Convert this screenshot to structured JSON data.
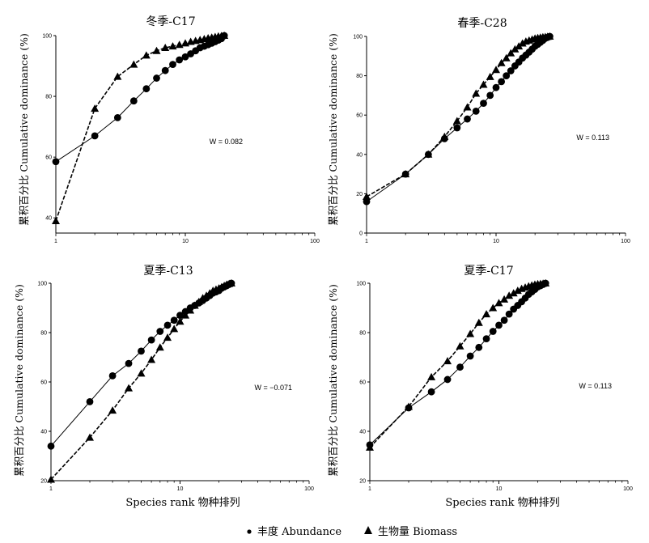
{
  "figure": {
    "ylabel": "累积百分比 Cumulative dominance (%)",
    "xlabel": "Species rank 物种排列",
    "legend": [
      {
        "marker": "circle",
        "label": "丰度 Abundance"
      },
      {
        "marker": "triangle",
        "label": "生物量 Biomass"
      }
    ]
  },
  "chart_data": [
    {
      "type": "line",
      "title": "冬季-C17",
      "annotation": "W = 0.082",
      "xscale": "log",
      "xlim": [
        1,
        100
      ],
      "xticks": [
        "1",
        "10",
        "100"
      ],
      "ylim": [
        35,
        100
      ],
      "yticks": [
        40,
        60,
        80,
        100
      ],
      "series": [
        {
          "name": "丰度 Abundance",
          "marker": "circle",
          "x": [
            1,
            2,
            3,
            4,
            5,
            6,
            7,
            8,
            9,
            10,
            11,
            12,
            13,
            14,
            15,
            16,
            17,
            18,
            19,
            20
          ],
          "values": [
            58.5,
            67,
            73,
            78.5,
            82.5,
            86,
            88.5,
            90.5,
            92,
            93,
            94,
            95,
            96,
            96.5,
            97,
            97.5,
            98,
            98.5,
            99,
            100
          ]
        },
        {
          "name": "生物量 Biomass",
          "marker": "triangle",
          "x": [
            1,
            2,
            3,
            4,
            5,
            6,
            7,
            8,
            9,
            10,
            11,
            12,
            13,
            14,
            15,
            16,
            17,
            18,
            19,
            20
          ],
          "values": [
            39,
            76,
            86.5,
            90.5,
            93.5,
            95,
            96,
            96.5,
            97,
            97.5,
            98,
            98.3,
            98.6,
            98.9,
            99.2,
            99.4,
            99.6,
            99.8,
            99.9,
            100
          ]
        }
      ]
    },
    {
      "type": "line",
      "title": "春季-C28",
      "annotation": "W = 0.113",
      "xscale": "log",
      "xlim": [
        1,
        100
      ],
      "xticks": [
        "1",
        "10",
        "100"
      ],
      "ylim": [
        0,
        100
      ],
      "yticks": [
        0,
        20,
        40,
        60,
        80,
        100
      ],
      "series": [
        {
          "name": "丰度 Abundance",
          "marker": "circle",
          "x": [
            1,
            2,
            3,
            4,
            5,
            6,
            7,
            8,
            9,
            10,
            11,
            12,
            13,
            14,
            15,
            16,
            17,
            18,
            19,
            20,
            21,
            22,
            23,
            24,
            25,
            26
          ],
          "values": [
            16,
            30,
            40,
            48,
            53.5,
            58,
            62,
            66,
            70,
            74,
            77,
            80,
            82.5,
            85,
            87,
            89,
            90.5,
            92,
            93.5,
            95,
            96,
            97,
            98,
            99,
            99.5,
            100
          ]
        },
        {
          "name": "生物量 Biomass",
          "marker": "triangle",
          "x": [
            1,
            2,
            3,
            4,
            5,
            6,
            7,
            8,
            9,
            10,
            11,
            12,
            13,
            14,
            15,
            16,
            17,
            18,
            19,
            20,
            21,
            22,
            23,
            24,
            25,
            26
          ],
          "values": [
            18.5,
            30,
            40,
            49,
            57,
            64,
            71,
            75.5,
            79.5,
            83,
            86.5,
            89,
            91.5,
            93.5,
            95,
            96.5,
            97.5,
            98,
            98.5,
            99,
            99.3,
            99.5,
            99.7,
            99.8,
            99.9,
            100
          ]
        }
      ]
    },
    {
      "type": "line",
      "title": "夏季-C13",
      "annotation": "W = −0.071",
      "xscale": "log",
      "xlim": [
        1,
        100
      ],
      "xticks": [
        "1",
        "10",
        "100"
      ],
      "ylim": [
        20,
        100
      ],
      "yticks": [
        20,
        40,
        60,
        80,
        100
      ],
      "series": [
        {
          "name": "丰度 Abundance",
          "marker": "circle",
          "x": [
            1,
            2,
            3,
            4,
            5,
            6,
            7,
            8,
            9,
            10,
            11,
            12,
            13,
            14,
            15,
            16,
            17,
            18,
            19,
            20,
            21,
            22,
            23,
            24,
            25
          ],
          "values": [
            34,
            52,
            62.5,
            67.5,
            72.5,
            77,
            80.5,
            83,
            85,
            87,
            88.5,
            90,
            91,
            92,
            93,
            94,
            95,
            96,
            96.5,
            97,
            98,
            98.5,
            99,
            99.5,
            100
          ]
        },
        {
          "name": "生物量 Biomass",
          "marker": "triangle",
          "x": [
            1,
            2,
            3,
            4,
            5,
            6,
            7,
            8,
            9,
            10,
            11,
            12,
            13,
            14,
            15,
            16,
            17,
            18,
            19,
            20,
            21,
            22,
            23,
            24,
            25
          ],
          "values": [
            20.5,
            37.5,
            48.5,
            57.5,
            63.5,
            69,
            74,
            78,
            81.5,
            84.5,
            87,
            89,
            91,
            92.5,
            94,
            95,
            96,
            97,
            97.5,
            98,
            98.5,
            99,
            99.5,
            99.8,
            100
          ]
        }
      ]
    },
    {
      "type": "line",
      "title": "夏季-C17",
      "annotation": "W = 0.113",
      "xscale": "log",
      "xlim": [
        1,
        100
      ],
      "xticks": [
        "1",
        "10",
        "100"
      ],
      "ylim": [
        20,
        100
      ],
      "yticks": [
        20,
        40,
        60,
        80,
        100
      ],
      "series": [
        {
          "name": "丰度 Abundance",
          "marker": "circle",
          "x": [
            1,
            2,
            3,
            4,
            5,
            6,
            7,
            8,
            9,
            10,
            11,
            12,
            13,
            14,
            15,
            16,
            17,
            18,
            19,
            20,
            21,
            22,
            23
          ],
          "values": [
            34.5,
            49.5,
            56,
            61,
            66,
            70.5,
            74,
            77.5,
            80.5,
            83,
            85,
            87.5,
            89.5,
            91,
            92.5,
            94,
            95.5,
            96.5,
            97.5,
            98.5,
            99,
            99.5,
            100
          ]
        },
        {
          "name": "生物量 Biomass",
          "marker": "triangle",
          "x": [
            1,
            2,
            3,
            4,
            5,
            6,
            7,
            8,
            9,
            10,
            11,
            12,
            13,
            14,
            15,
            16,
            17,
            18,
            19,
            20,
            21,
            22,
            23
          ],
          "values": [
            33.5,
            50,
            62,
            68.5,
            74.5,
            79.5,
            84,
            87.5,
            90,
            92,
            93.5,
            95,
            96,
            97,
            97.8,
            98.3,
            98.8,
            99.2,
            99.5,
            99.7,
            99.8,
            99.9,
            100
          ]
        }
      ]
    }
  ]
}
